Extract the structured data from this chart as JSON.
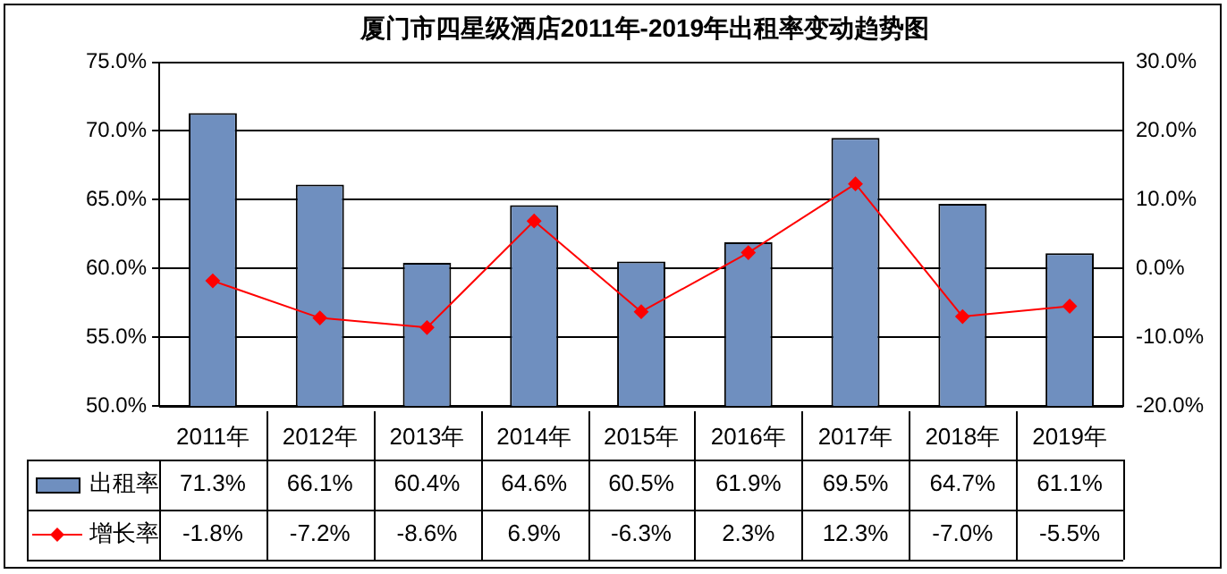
{
  "chart_data": {
    "type": "bar",
    "title": "厦门市四星级酒店2011年-2019年出租率变动趋势图",
    "categories": [
      "2011年",
      "2012年",
      "2013年",
      "2014年",
      "2015年",
      "2016年",
      "2017年",
      "2018年",
      "2019年"
    ],
    "series": [
      {
        "name": "出租率",
        "color": "#6f8fbf",
        "values": [
          71.3,
          66.1,
          60.4,
          64.6,
          60.5,
          61.9,
          69.5,
          64.7,
          61.1
        ],
        "value_labels": [
          "71.3%",
          "66.1%",
          "60.4%",
          "64.6%",
          "60.5%",
          "61.9%",
          "69.5%",
          "64.7%",
          "61.1%"
        ]
      },
      {
        "name": "增长率",
        "type": "line",
        "axis": "y2",
        "color": "#ff0000",
        "marker": "diamond",
        "values": [
          -1.8,
          -7.2,
          -8.6,
          6.9,
          -6.3,
          2.3,
          12.3,
          -7.0,
          -5.5
        ],
        "value_labels": [
          "-1.8%",
          "-7.2%",
          "-8.6%",
          "6.9%",
          "-6.3%",
          "2.3%",
          "12.3%",
          "-7.0%",
          "-5.5%"
        ]
      }
    ],
    "ylim": [
      50,
      75
    ],
    "yticks": [
      {
        "value": 50,
        "label": "50.0%"
      },
      {
        "value": 55,
        "label": "55.0%"
      },
      {
        "value": 60,
        "label": "60.0%"
      },
      {
        "value": 65,
        "label": "65.0%"
      },
      {
        "value": 70,
        "label": "70.0%"
      },
      {
        "value": 75,
        "label": "75.0%"
      }
    ],
    "y2lim": [
      -20,
      30
    ],
    "y2ticks": [
      {
        "value": -20,
        "label": "-20.0%"
      },
      {
        "value": -10,
        "label": "-10.0%"
      },
      {
        "value": 0,
        "label": "0.0%"
      },
      {
        "value": 10,
        "label": "10.0%"
      },
      {
        "value": 20,
        "label": "20.0%"
      },
      {
        "value": 30,
        "label": "30.0%"
      }
    ],
    "grid": "y",
    "legend": "bottom"
  }
}
